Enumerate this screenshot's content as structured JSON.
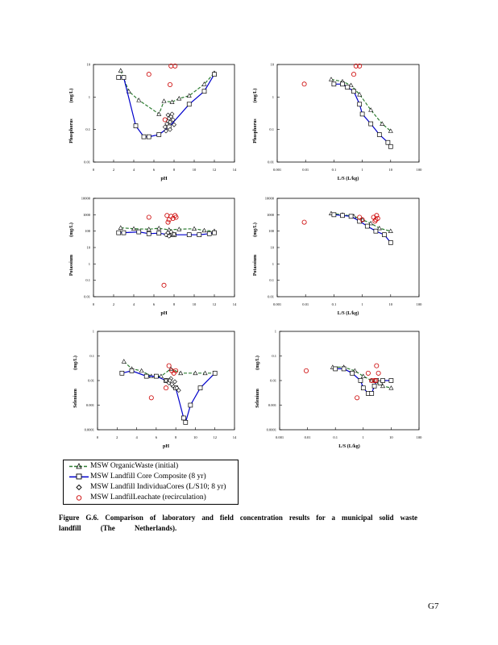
{
  "page": {
    "number": "G⁠7"
  },
  "charts": {
    "ph_xlabel": "pH",
    "ls_xlabel": "L/S   (L/kg)",
    "unit_label": "(mg/L)",
    "ph_ticks": [
      "0",
      "2",
      "4",
      "6",
      "8",
      "10",
      "12",
      "14"
    ],
    "ls_ticks": [
      "0.001",
      "0.01",
      "0.1",
      "1",
      "10",
      "100"
    ],
    "phosphorus": {
      "label": "Phosphorus",
      "yticks": [
        "0.01",
        "0.1",
        "1",
        "10"
      ]
    },
    "potassium": {
      "label": "Potassium",
      "yticks": [
        "0.01",
        "0.1",
        "1",
        "10",
        "100",
        "1000",
        "10000"
      ]
    },
    "selenium": {
      "label": "Selenium",
      "yticks": [
        "0.0001",
        "0.001",
        "0.01",
        "0.1",
        "1"
      ]
    }
  },
  "legend": {
    "organic": "MSW OrganicWaste (initial)",
    "core_composite": "MSW Landfill Core Composite (8 yr)",
    "individual_cores": "MSW Landfill IndividuaCores (L/S10; 8 yr)",
    "leachate": "MSW LandfilLeachate (recirculation)"
  },
  "caption": {
    "line1": [
      "Figure",
      "G.6.",
      "Comparison",
      "of laboratory",
      "and field",
      "concentration",
      "results",
      "for a municipal",
      "solid",
      "waste"
    ],
    "line2": [
      "landfill",
      "(The",
      "Netherlands)."
    ]
  },
  "chart_data": [
    {
      "type": "scatter",
      "panel": "phosphorus-ph",
      "ylabel": "Phosphorus",
      "xlabel": "pH",
      "xlim": [
        0,
        14
      ],
      "ylim": [
        0.01,
        10
      ],
      "yscale": "log",
      "series": [
        {
          "name": "MSW OrganicWaste (initial)",
          "type": "line",
          "x": [
            2.7,
            3.5,
            4.5,
            6.5,
            7.0,
            7.8,
            8.5,
            9.5,
            11.0,
            12.0
          ],
          "y": [
            6.5,
            1.5,
            0.8,
            0.3,
            0.75,
            0.7,
            0.9,
            1.1,
            2.5,
            5.5
          ]
        },
        {
          "name": "MSW Landfill Core Composite (8 yr)",
          "type": "line",
          "x": [
            2.5,
            3.0,
            4.2,
            5.0,
            5.5,
            6.5,
            7.5,
            9.5,
            11.0,
            12.0
          ],
          "y": [
            4.0,
            4.0,
            0.13,
            0.06,
            0.06,
            0.07,
            0.12,
            0.6,
            1.5,
            5.0
          ]
        },
        {
          "name": "MSW Landfill IndividuaCores (L/S10; 8 yr)",
          "type": "scatter",
          "x": [
            7.1,
            7.3,
            7.4,
            7.5,
            7.6,
            7.7,
            7.8,
            7.9,
            8.0,
            7.6,
            7.4,
            7.2
          ],
          "y": [
            0.12,
            0.15,
            0.18,
            0.22,
            0.1,
            0.25,
            0.3,
            0.2,
            0.14,
            0.17,
            0.28,
            0.09
          ]
        },
        {
          "name": "MSW LandfilLeachate (recirculation)",
          "type": "scatter",
          "x": [
            5.5,
            7.1,
            7.6,
            7.7,
            8.1
          ],
          "y": [
            5.0,
            0.2,
            2.4,
            9.0,
            9.0
          ]
        }
      ]
    },
    {
      "type": "scatter",
      "panel": "phosphorus-ls",
      "ylabel": "Phosphorus",
      "xlabel": "L/S   (L/kg)",
      "xlim": [
        0.001,
        100
      ],
      "xscale": "log",
      "ylim": [
        0.01,
        10
      ],
      "yscale": "log",
      "series": [
        {
          "name": "MSW OrganicWaste (initial)",
          "type": "line",
          "x": [
            0.08,
            0.2,
            0.4,
            0.8,
            2.0,
            5.0,
            10.0
          ],
          "y": [
            3.5,
            3.0,
            2.3,
            1.2,
            0.4,
            0.15,
            0.09
          ]
        },
        {
          "name": "MSW Landfill Core Composite (8 yr)",
          "type": "line",
          "x": [
            0.1,
            0.2,
            0.3,
            0.5,
            0.8,
            1.0,
            2.0,
            4.0,
            8.0,
            10.0
          ],
          "y": [
            2.5,
            2.5,
            2.0,
            1.5,
            0.6,
            0.3,
            0.15,
            0.07,
            0.04,
            0.03
          ]
        },
        {
          "name": "MSW LandfilLeachate (recirculation)",
          "type": "scatter",
          "x": [
            0.009,
            0.5,
            0.6,
            0.8
          ],
          "y": [
            2.5,
            5.0,
            9.0,
            9.0
          ]
        }
      ]
    },
    {
      "type": "scatter",
      "panel": "potassium-ph",
      "ylabel": "Potassium",
      "xlabel": "pH",
      "xlim": [
        0,
        14
      ],
      "ylim": [
        0.01,
        10000
      ],
      "yscale": "log",
      "series": [
        {
          "name": "MSW OrganicWaste (initial)",
          "type": "line",
          "x": [
            2.7,
            4.0,
            5.5,
            6.5,
            7.5,
            8.5,
            10.0,
            11.0,
            12.0
          ],
          "y": [
            160,
            140,
            130,
            150,
            120,
            130,
            140,
            110,
            100
          ]
        },
        {
          "name": "MSW Landfill Core Composite (8 yr)",
          "type": "line",
          "x": [
            2.5,
            3.0,
            4.5,
            5.5,
            6.5,
            7.5,
            8.0,
            9.5,
            10.5,
            11.5,
            12.0
          ],
          "y": [
            80,
            80,
            90,
            70,
            75,
            60,
            60,
            60,
            60,
            70,
            80
          ]
        },
        {
          "name": "MSW Landfill IndividuaCores (L/S10; 8 yr)",
          "type": "scatter",
          "x": [
            7.2,
            7.4,
            7.6,
            7.8,
            8.0,
            7.7,
            7.5
          ],
          "y": [
            60,
            80,
            55,
            70,
            65,
            90,
            50
          ]
        },
        {
          "name": "MSW LandfilLeachate (recirculation)",
          "type": "scatter",
          "x": [
            5.5,
            7.0,
            7.3,
            7.5,
            7.7,
            7.9,
            8.1,
            8.2,
            7.4
          ],
          "y": [
            700,
            0.05,
            900,
            500,
            800,
            600,
            900,
            700,
            350
          ]
        }
      ]
    },
    {
      "type": "scatter",
      "panel": "potassium-ls",
      "ylabel": "Potassium",
      "xlabel": "L/S   (L/kg)",
      "xlim": [
        0.001,
        100
      ],
      "xscale": "log",
      "ylim": [
        0.01,
        10000
      ],
      "yscale": "log",
      "series": [
        {
          "name": "MSW OrganicWaste (initial)",
          "type": "line",
          "x": [
            0.08,
            0.2,
            0.5,
            1.0,
            2.0,
            4.0,
            10.0
          ],
          "y": [
            1200,
            1000,
            800,
            500,
            300,
            150,
            100
          ]
        },
        {
          "name": "MSW Landfill Core Composite (8 yr)",
          "type": "line",
          "x": [
            0.1,
            0.2,
            0.4,
            0.8,
            1.5,
            3.0,
            6.0,
            10.0
          ],
          "y": [
            1000,
            900,
            800,
            400,
            200,
            100,
            60,
            20
          ]
        },
        {
          "name": "MSW LandfilLeachate (recirculation)",
          "type": "scatter",
          "x": [
            0.009,
            0.8,
            1.0,
            2.5,
            3.0,
            3.2,
            3.5,
            2.8
          ],
          "y": [
            350,
            700,
            500,
            700,
            500,
            900,
            600,
            400
          ]
        }
      ]
    },
    {
      "type": "scatter",
      "panel": "selenium-ph",
      "ylabel": "Selenium",
      "xlabel": "pH",
      "xlim": [
        0,
        14
      ],
      "ylim": [
        0.0001,
        1
      ],
      "yscale": "log",
      "series": [
        {
          "name": "MSW OrganicWaste (initial)",
          "type": "line",
          "x": [
            2.7,
            3.5,
            4.5,
            5.5,
            6.5,
            7.5,
            8.5,
            10.0,
            11.0,
            12.0
          ],
          "y": [
            0.06,
            0.03,
            0.025,
            0.015,
            0.015,
            0.03,
            0.02,
            0.02,
            0.02,
            0.02
          ]
        },
        {
          "name": "MSW Landfill Core Composite (8 yr)",
          "type": "line",
          "x": [
            2.5,
            3.5,
            5.0,
            6.0,
            7.0,
            8.0,
            8.8,
            9.0,
            9.5,
            10.5,
            12.0
          ],
          "y": [
            0.02,
            0.025,
            0.015,
            0.015,
            0.01,
            0.005,
            0.0003,
            0.0002,
            0.001,
            0.005,
            0.02
          ]
        },
        {
          "name": "MSW Landfill IndividuaCores (L/S10; 8 yr)",
          "type": "scatter",
          "x": [
            7.0,
            7.3,
            7.5,
            7.7,
            7.9,
            8.1,
            8.3,
            7.6,
            7.4
          ],
          "y": [
            0.01,
            0.008,
            0.012,
            0.006,
            0.009,
            0.005,
            0.004,
            0.007,
            0.01
          ]
        },
        {
          "name": "MSW LandfilLeachate (recirculation)",
          "type": "scatter",
          "x": [
            5.5,
            7.0,
            7.3,
            7.6,
            7.8,
            8.0
          ],
          "y": [
            0.002,
            0.005,
            0.04,
            0.025,
            0.02,
            0.025
          ]
        }
      ]
    },
    {
      "type": "scatter",
      "panel": "selenium-ls",
      "ylabel": "Selenium",
      "xlabel": "L/S   (L/kg)",
      "xlim": [
        0.001,
        100
      ],
      "xscale": "log",
      "ylim": [
        0.0001,
        1
      ],
      "yscale": "log",
      "series": [
        {
          "name": "MSW OrganicWaste (initial)",
          "type": "line",
          "x": [
            0.08,
            0.2,
            0.5,
            1.0,
            2.0,
            5.0,
            10.0
          ],
          "y": [
            0.035,
            0.035,
            0.025,
            0.015,
            0.01,
            0.006,
            0.005
          ]
        },
        {
          "name": "MSW Landfill Core Composite (8 yr)",
          "type": "line",
          "x": [
            0.1,
            0.2,
            0.4,
            0.8,
            1.0,
            1.5,
            2.0,
            2.5,
            3.0,
            4.0,
            5.0,
            10.0
          ],
          "y": [
            0.03,
            0.03,
            0.02,
            0.01,
            0.005,
            0.003,
            0.003,
            0.006,
            0.01,
            0.008,
            0.01,
            0.01
          ]
        },
        {
          "name": "MSW LandfilLeachate (recirculation)",
          "type": "scatter",
          "x": [
            0.009,
            0.6,
            1.5,
            2.0,
            2.5,
            3.0,
            3.5,
            2.8
          ],
          "y": [
            0.025,
            0.002,
            0.02,
            0.01,
            0.01,
            0.04,
            0.02,
            0.01
          ]
        }
      ]
    }
  ]
}
